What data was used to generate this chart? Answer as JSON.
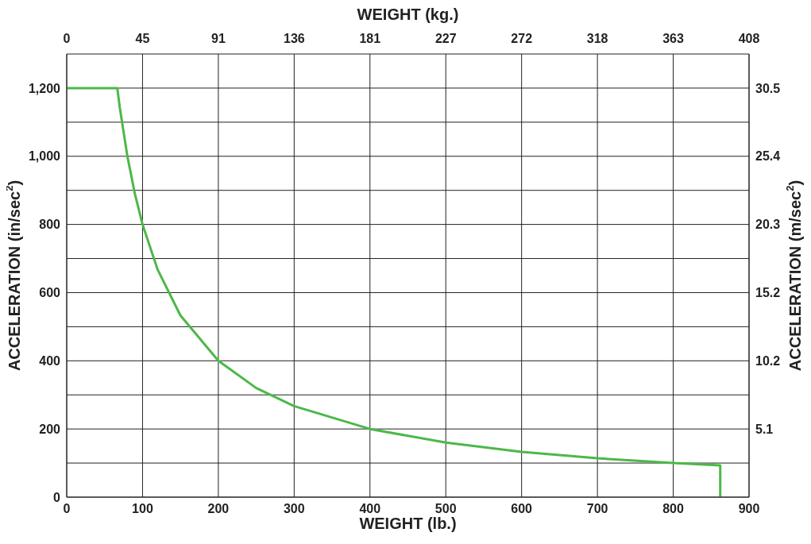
{
  "chart_data": {
    "type": "line",
    "xlabel": "WEIGHT (lb.)",
    "x2label": "WEIGHT (kg.)",
    "ylabel": "ACCELERATION (in/sec$^{2}$)",
    "y2label": "ACCELERATION (m/sec$^{2}$)",
    "xlim": [
      0,
      900
    ],
    "xticks": [
      0,
      100,
      200,
      300,
      400,
      500,
      600,
      700,
      800,
      900
    ],
    "x2lim": [
      0,
      408.23
    ],
    "x2ticks": [
      {
        "value": 0,
        "label": "0"
      },
      {
        "value": 45.36,
        "label": "45"
      },
      {
        "value": 90.72,
        "label": "91"
      },
      {
        "value": 136.08,
        "label": "136"
      },
      {
        "value": 181.44,
        "label": "181"
      },
      {
        "value": 226.8,
        "label": "227"
      },
      {
        "value": 272.16,
        "label": "272"
      },
      {
        "value": 317.51,
        "label": "318"
      },
      {
        "value": 362.87,
        "label": "363"
      },
      {
        "value": 408.23,
        "label": "408"
      }
    ],
    "ylim": [
      0,
      1300
    ],
    "yticks": [
      {
        "value": 0,
        "label": "0"
      },
      {
        "value": 100,
        "label": null
      },
      {
        "value": 200,
        "label": "200"
      },
      {
        "value": 300,
        "label": null
      },
      {
        "value": 400,
        "label": "400"
      },
      {
        "value": 500,
        "label": null
      },
      {
        "value": 600,
        "label": "600"
      },
      {
        "value": 700,
        "label": null
      },
      {
        "value": 800,
        "label": "800"
      },
      {
        "value": 900,
        "label": null
      },
      {
        "value": 1000,
        "label": "1,000"
      },
      {
        "value": 1100,
        "label": null
      },
      {
        "value": 1200,
        "label": "1,200"
      }
    ],
    "y2lim": [
      0,
      33.02
    ],
    "y2ticks": [
      {
        "value": 5.08,
        "label": "5.1"
      },
      {
        "value": 10.16,
        "label": "10.2"
      },
      {
        "value": 15.24,
        "label": "15.2"
      },
      {
        "value": 20.32,
        "label": "20.3"
      },
      {
        "value": 25.4,
        "label": "25.4"
      },
      {
        "value": 30.48,
        "label": "30.5"
      }
    ],
    "grid": true,
    "series": [
      {
        "color": "#4cb848",
        "x": [
          0,
          66.7,
          70,
          80,
          90,
          100,
          120,
          150,
          200,
          250,
          300,
          400,
          500,
          600,
          700,
          800,
          862,
          862
        ],
        "values": [
          1200,
          1200,
          1143,
          1000,
          889,
          800,
          667,
          533,
          400,
          320,
          267,
          200,
          160,
          133,
          114,
          100,
          93,
          0
        ]
      }
    ]
  }
}
